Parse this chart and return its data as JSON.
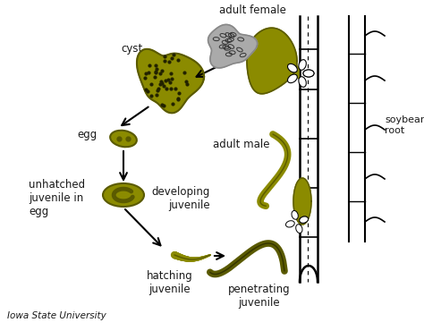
{
  "background_color": "#ffffff",
  "olive": "#8B8B00",
  "olive_dark": "#5a5a00",
  "olive_light": "#9aaa10",
  "gray": "#aaaaaa",
  "gray_dark": "#888888",
  "black": "#000000",
  "text_color": "#1a1a1a",
  "labels": {
    "adult_female": "adult female",
    "cyst": "cyst",
    "egg": "egg",
    "unhatched": "unhatched\njuvenile in\negg",
    "hatching": "hatching\njuvenile",
    "penetrating": "penetrating\njuvenile",
    "developing": "developing\njuvenile",
    "adult_male": "adult male",
    "soybean_root": "soybean\nroot",
    "credit": "Iowa State University"
  },
  "figsize": [
    4.74,
    3.7
  ],
  "dpi": 100
}
